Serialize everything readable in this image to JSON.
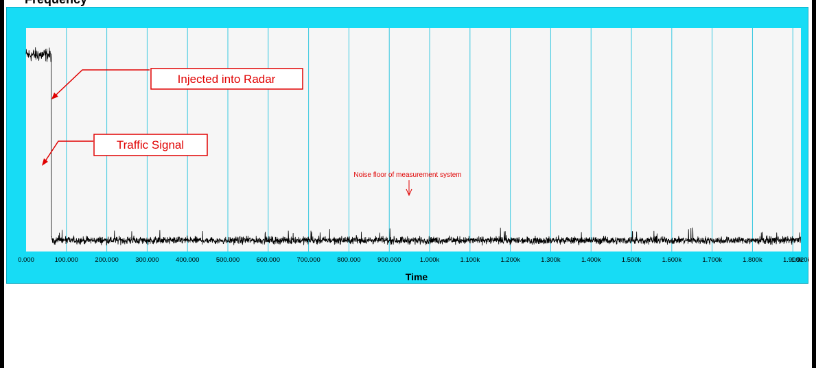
{
  "window": {
    "title": "Frequency"
  },
  "colors": {
    "frame": "#17dcf5",
    "plot_background": "#f6f6f6",
    "gridline": "#38c8e0",
    "trace": "#000000",
    "annotation": "#e00000"
  },
  "chart_data": {
    "type": "line",
    "title": "",
    "xlabel": "Time",
    "ylabel": "",
    "xlim": [
      0,
      1920
    ],
    "x_tick_labels": [
      "0.000",
      "100.000",
      "200.000",
      "300.000",
      "400.000",
      "500.000",
      "600.000",
      "700.000",
      "800.000",
      "900.000",
      "1.000k",
      "1.100k",
      "1.200k",
      "1.300k",
      "1.400k",
      "1.500k",
      "1.600k",
      "1.700k",
      "1.800k",
      "1.900k",
      "1.920k"
    ],
    "x_tick_values": [
      0,
      100,
      200,
      300,
      400,
      500,
      600,
      700,
      800,
      900,
      1000,
      1100,
      1200,
      1300,
      1400,
      1500,
      1600,
      1700,
      1800,
      1900,
      1920
    ],
    "vertical_grid": true,
    "horizontal_grid": false,
    "legend": "none",
    "series": [
      {
        "segments": [
          {
            "x_start": 0,
            "x_end": 63,
            "level": 0.88,
            "noise": 0.045
          },
          {
            "x_start": 63,
            "x_end": 1920,
            "level": 0.05,
            "noise": 0.025
          }
        ],
        "step_x": 63
      }
    ],
    "annotations": [
      {
        "text": "Injected into Radar"
      },
      {
        "text": "Traffic Signal"
      },
      {
        "text": "Noise floor of measurement system"
      }
    ]
  }
}
